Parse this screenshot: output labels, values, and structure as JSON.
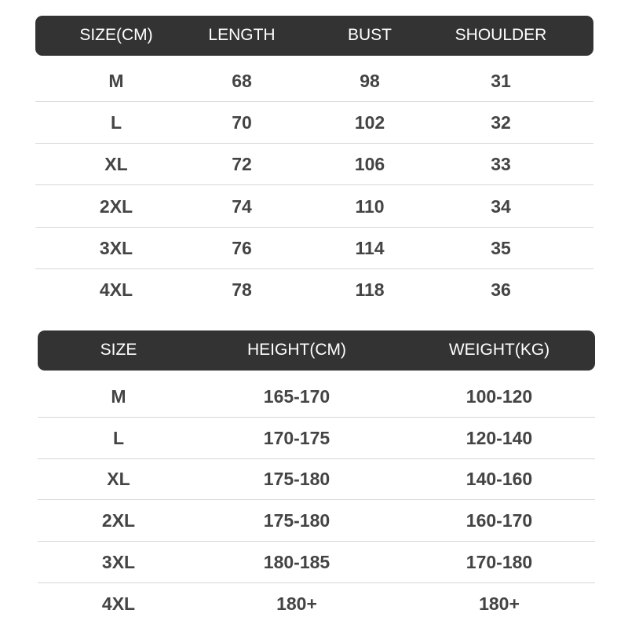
{
  "table1": {
    "headers": [
      "SIZE(CM)",
      "LENGTH",
      "BUST",
      "SHOULDER"
    ],
    "rows": [
      [
        "M",
        "68",
        "98",
        "31"
      ],
      [
        "L",
        "70",
        "102",
        "32"
      ],
      [
        "XL",
        "72",
        "106",
        "33"
      ],
      [
        "2XL",
        "74",
        "110",
        "34"
      ],
      [
        "3XL",
        "76",
        "114",
        "35"
      ],
      [
        "4XL",
        "78",
        "118",
        "36"
      ]
    ]
  },
  "table2": {
    "headers": [
      "SIZE",
      "HEIGHT(CM)",
      "WEIGHT(KG)"
    ],
    "rows": [
      [
        "M",
        "165-170",
        "100-120"
      ],
      [
        "L",
        "170-175",
        "120-140"
      ],
      [
        "XL",
        "175-180",
        "140-160"
      ],
      [
        "2XL",
        "175-180",
        "160-170"
      ],
      [
        "3XL",
        "180-185",
        "170-180"
      ],
      [
        "4XL",
        "180+",
        "180+"
      ]
    ]
  },
  "colors": {
    "header_bg": "#333333",
    "header_text": "#ffffff",
    "body_text": "#444444"
  }
}
